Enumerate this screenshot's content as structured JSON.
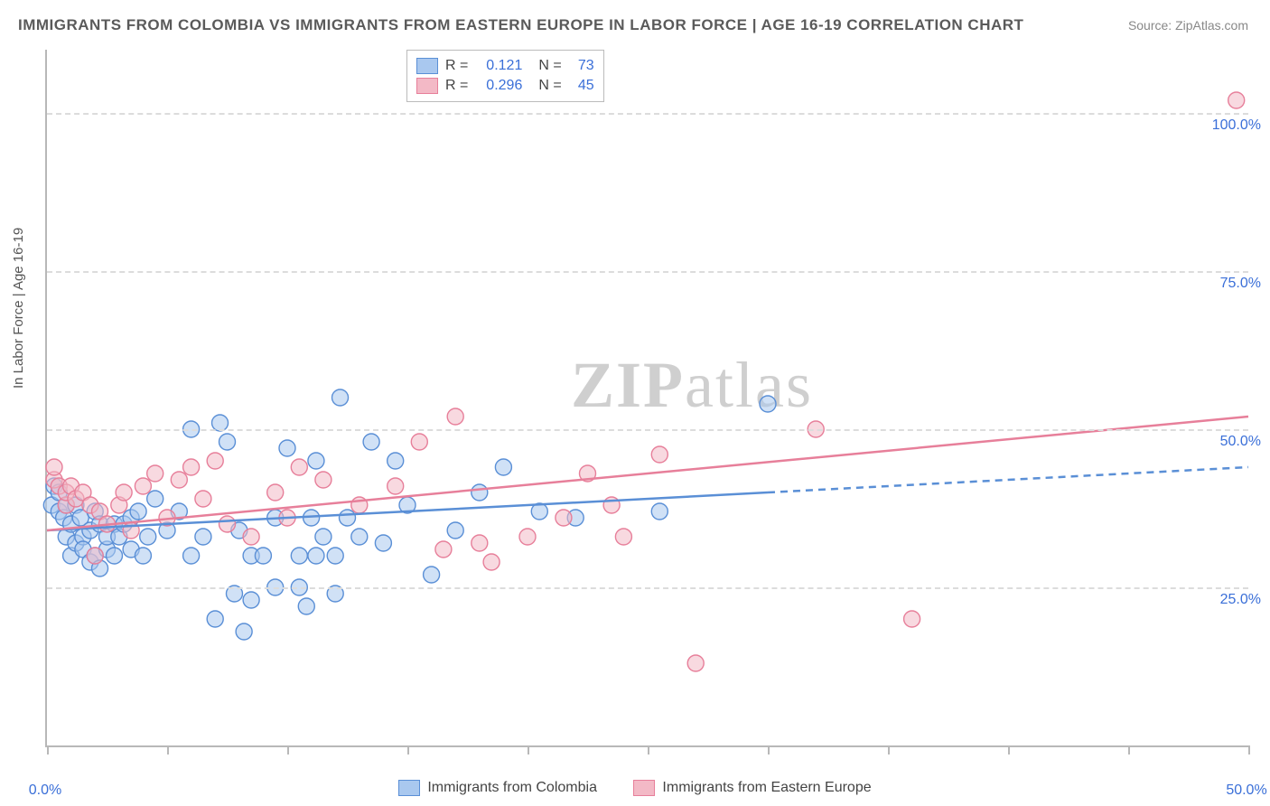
{
  "title": "IMMIGRANTS FROM COLOMBIA VS IMMIGRANTS FROM EASTERN EUROPE IN LABOR FORCE | AGE 16-19 CORRELATION CHART",
  "source": "Source: ZipAtlas.com",
  "ylabel": "In Labor Force | Age 16-19",
  "watermark_1": "ZIP",
  "watermark_2": "atlas",
  "chart": {
    "type": "scatter",
    "xlim": [
      0,
      50
    ],
    "ylim": [
      0,
      110
    ],
    "xticks": [
      0,
      50
    ],
    "xtick_labels": [
      "0.0%",
      "50.0%"
    ],
    "yticks": [
      25,
      50,
      75,
      100
    ],
    "ytick_labels": [
      "25.0%",
      "50.0%",
      "75.0%",
      "100.0%"
    ],
    "vtick_positions": [
      0,
      5,
      10,
      15,
      20,
      25,
      30,
      35,
      40,
      45,
      50
    ],
    "background_color": "#ffffff",
    "grid_color": "#dcdcdc",
    "axis_color": "#b8b8b8",
    "tick_label_color": "#3a6fd8",
    "marker_radius": 9,
    "marker_stroke_width": 1.4,
    "line_width": 2.5,
    "series": [
      {
        "name": "Immigrants from Colombia",
        "fill": "#a9c8ef",
        "stroke": "#5a8fd6",
        "fill_opacity": 0.55,
        "r_value": "0.121",
        "n_value": "73",
        "trend": {
          "x1": 0,
          "y1": 34,
          "x2": 30,
          "y2": 40,
          "dash_x2": 50,
          "dash_y2": 44
        },
        "points": [
          [
            0.2,
            38
          ],
          [
            0.3,
            41
          ],
          [
            0.5,
            37
          ],
          [
            0.5,
            40
          ],
          [
            0.7,
            36
          ],
          [
            0.8,
            38
          ],
          [
            0.8,
            33
          ],
          [
            1.0,
            35
          ],
          [
            1.0,
            30
          ],
          [
            1.2,
            38
          ],
          [
            1.2,
            32
          ],
          [
            1.4,
            36
          ],
          [
            1.5,
            33
          ],
          [
            1.5,
            31
          ],
          [
            1.8,
            34
          ],
          [
            1.8,
            29
          ],
          [
            2.0,
            30
          ],
          [
            2.0,
            37
          ],
          [
            2.2,
            35
          ],
          [
            2.2,
            28
          ],
          [
            2.5,
            31
          ],
          [
            2.5,
            33
          ],
          [
            2.8,
            35
          ],
          [
            2.8,
            30
          ],
          [
            3.0,
            33
          ],
          [
            3.2,
            35
          ],
          [
            3.5,
            31
          ],
          [
            3.5,
            36
          ],
          [
            3.8,
            37
          ],
          [
            4.0,
            30
          ],
          [
            4.2,
            33
          ],
          [
            4.5,
            39
          ],
          [
            5.0,
            34
          ],
          [
            5.5,
            37
          ],
          [
            6.0,
            30
          ],
          [
            6.0,
            50
          ],
          [
            6.5,
            33
          ],
          [
            7.0,
            20
          ],
          [
            7.2,
            51
          ],
          [
            7.5,
            48
          ],
          [
            7.8,
            24
          ],
          [
            8.0,
            34
          ],
          [
            8.2,
            18
          ],
          [
            8.5,
            30
          ],
          [
            8.5,
            23
          ],
          [
            9.0,
            30
          ],
          [
            9.5,
            25
          ],
          [
            9.5,
            36
          ],
          [
            10.0,
            47
          ],
          [
            10.5,
            30
          ],
          [
            10.5,
            25
          ],
          [
            10.8,
            22
          ],
          [
            11.0,
            36
          ],
          [
            11.2,
            30
          ],
          [
            11.2,
            45
          ],
          [
            11.5,
            33
          ],
          [
            12.0,
            24
          ],
          [
            12.0,
            30
          ],
          [
            12.2,
            55
          ],
          [
            12.5,
            36
          ],
          [
            13.0,
            33
          ],
          [
            13.5,
            48
          ],
          [
            14.0,
            32
          ],
          [
            14.5,
            45
          ],
          [
            15.0,
            38
          ],
          [
            16.0,
            27
          ],
          [
            17.0,
            34
          ],
          [
            18.0,
            40
          ],
          [
            19.0,
            44
          ],
          [
            20.5,
            37
          ],
          [
            22.0,
            36
          ],
          [
            25.5,
            37
          ],
          [
            30.0,
            54
          ]
        ]
      },
      {
        "name": "Immigrants from Eastern Europe",
        "fill": "#f3b9c6",
        "stroke": "#e77f9a",
        "fill_opacity": 0.55,
        "r_value": "0.296",
        "n_value": "45",
        "trend": {
          "x1": 0,
          "y1": 34,
          "x2": 50,
          "y2": 52,
          "dash_x2": null,
          "dash_y2": null
        },
        "points": [
          [
            0.3,
            42
          ],
          [
            0.5,
            41
          ],
          [
            0.8,
            38
          ],
          [
            0.8,
            40
          ],
          [
            1.0,
            41
          ],
          [
            1.2,
            39
          ],
          [
            1.5,
            40
          ],
          [
            1.8,
            38
          ],
          [
            2.0,
            30
          ],
          [
            2.2,
            37
          ],
          [
            2.5,
            35
          ],
          [
            3.0,
            38
          ],
          [
            3.2,
            40
          ],
          [
            3.5,
            34
          ],
          [
            4.0,
            41
          ],
          [
            4.5,
            43
          ],
          [
            5.0,
            36
          ],
          [
            5.5,
            42
          ],
          [
            6.0,
            44
          ],
          [
            6.5,
            39
          ],
          [
            7.0,
            45
          ],
          [
            7.5,
            35
          ],
          [
            8.5,
            33
          ],
          [
            9.5,
            40
          ],
          [
            10.0,
            36
          ],
          [
            10.5,
            44
          ],
          [
            11.5,
            42
          ],
          [
            13.0,
            38
          ],
          [
            14.5,
            41
          ],
          [
            15.5,
            48
          ],
          [
            16.5,
            31
          ],
          [
            17.0,
            52
          ],
          [
            18.0,
            32
          ],
          [
            18.5,
            29
          ],
          [
            20.0,
            33
          ],
          [
            21.5,
            36
          ],
          [
            22.5,
            43
          ],
          [
            23.5,
            38
          ],
          [
            24.0,
            33
          ],
          [
            25.5,
            46
          ],
          [
            27.0,
            13
          ],
          [
            32.0,
            50
          ],
          [
            36.0,
            20
          ],
          [
            49.5,
            102
          ],
          [
            0.3,
            44
          ]
        ]
      }
    ]
  },
  "legend_top": {
    "r_label": "R =",
    "n_label": "N ="
  },
  "legend_bottom_labels": [
    "Immigrants from Colombia",
    "Immigrants from Eastern Europe"
  ]
}
